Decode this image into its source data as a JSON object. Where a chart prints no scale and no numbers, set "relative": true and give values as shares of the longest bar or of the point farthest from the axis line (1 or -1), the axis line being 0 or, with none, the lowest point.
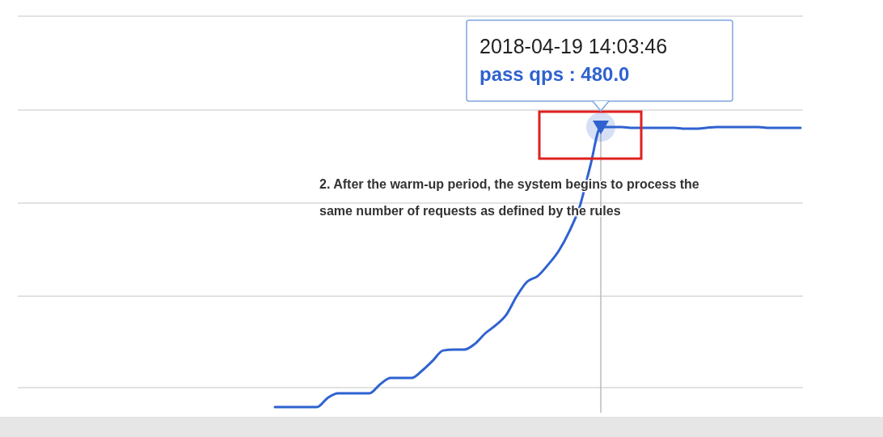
{
  "chart_data": {
    "type": "line",
    "relative": true,
    "grid": true,
    "marker": "none",
    "categories": [
      null,
      null,
      null,
      null,
      null,
      null,
      null,
      null,
      null,
      null,
      null,
      null,
      null,
      null,
      null,
      null,
      null,
      null,
      null,
      null,
      null,
      null,
      null,
      null,
      null,
      null,
      null,
      null,
      null,
      null,
      null,
      null,
      null,
      null,
      null,
      null,
      null,
      null,
      null,
      null,
      null,
      null,
      null,
      null,
      null,
      null,
      null,
      null,
      null,
      null,
      null
    ],
    "series": [
      {
        "color": "#2f62d0",
        "values": [
          0,
          0,
          0,
          0,
          0,
          0.032,
          0.049,
          0.049,
          0.049,
          0.049,
          0.081,
          0.104,
          0.104,
          0.104,
          0.13,
          0.165,
          0.202,
          0.205,
          0.205,
          0.225,
          0.263,
          0.292,
          0.329,
          0.396,
          0.448,
          0.468,
          0.509,
          0.558,
          0.627,
          0.717,
          0.861,
          1,
          1,
          1,
          0.997,
          0.997,
          0.997,
          0.997,
          0.997,
          0.994,
          0.994,
          0.997,
          1,
          1,
          1,
          1,
          1,
          0.997,
          0.997,
          0.997,
          0.997
        ]
      }
    ],
    "annotations": [
      "2018-04-19 14:03:46",
      "pass qps : 480.0",
      "2. After the warm-up period, the system begins to process the same number of requests as defined by the rules"
    ]
  }
}
